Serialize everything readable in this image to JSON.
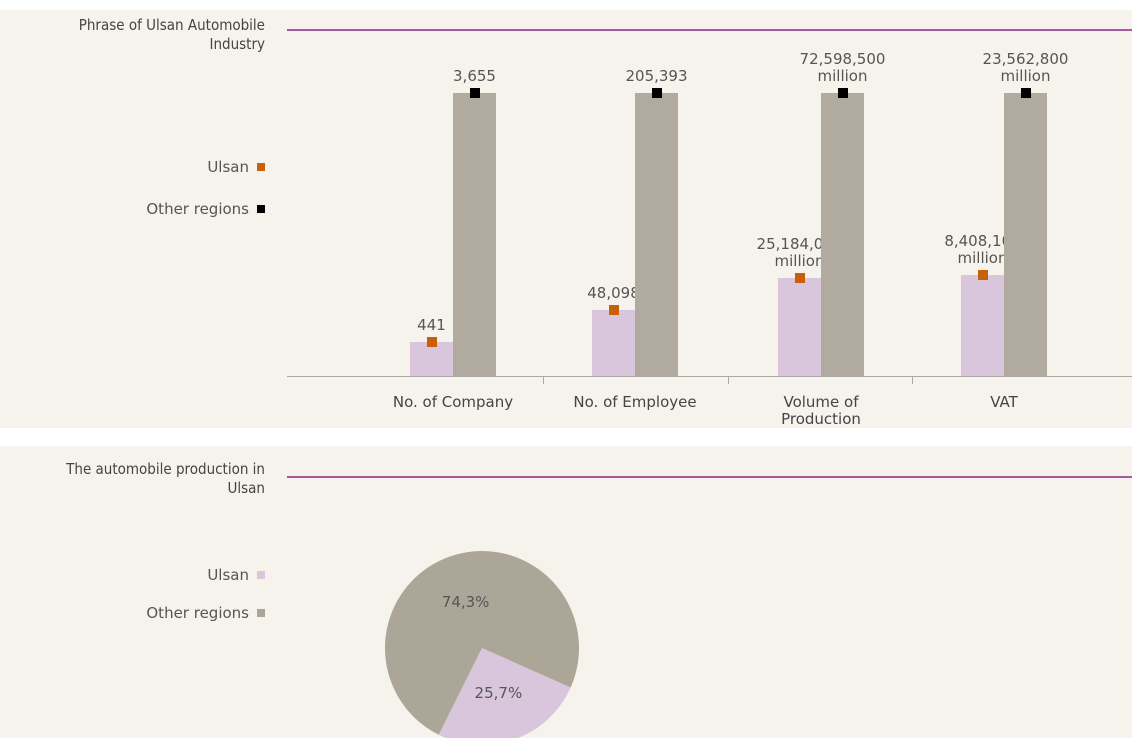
{
  "chart_data": [
    {
      "type": "bar",
      "title": "Phrase of Ulsan Automobile Industry",
      "categories": [
        "No. of Company",
        "No. of Employee",
        "Volume of Production",
        "VAT"
      ],
      "series": [
        {
          "name": "Ulsan",
          "color": "#d9c6dd",
          "marker_color": "#c8600a",
          "values": [
            441,
            48098,
            25184000,
            8408100
          ],
          "value_labels": [
            "441",
            "48,098",
            "25,184,000 million",
            "8,408,100 million"
          ]
        },
        {
          "name": "Other regions",
          "color": "#b1ab9f",
          "marker_color": "#000000",
          "values": [
            3655,
            205393,
            72598500,
            23562800
          ],
          "value_labels": [
            "3,655",
            "205,393",
            "72,598,500 million",
            "23,562,800 million"
          ]
        }
      ]
    },
    {
      "type": "pie",
      "title": "The automobile production in Ulsan",
      "categories": [
        "Ulsan",
        "Other regions"
      ],
      "values": [
        25.7,
        74.3
      ],
      "value_labels": [
        "25,7%",
        "74,3%"
      ],
      "colors": [
        "#d9c6dd",
        "#aba698"
      ]
    }
  ]
}
